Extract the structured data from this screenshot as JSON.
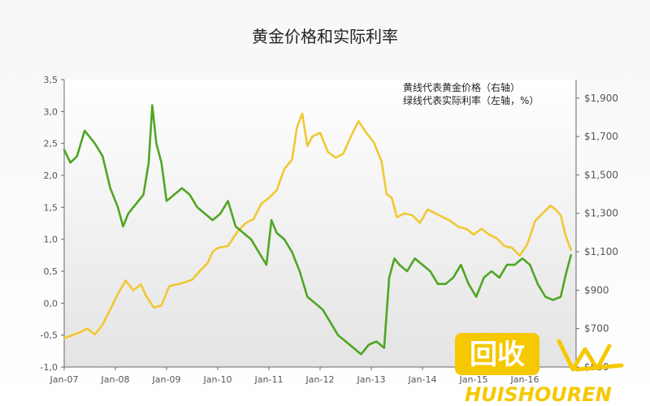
{
  "chart_data": {
    "type": "line",
    "title": "黄金价格和实际利率",
    "legend_lines": [
      "黄线代表黄金价格（右轴）",
      "绿线代表实际利率（左轴，%）"
    ],
    "legend_placement": "top-right",
    "grid": false,
    "x_ticks": [
      "Jan-07",
      "Jan-08",
      "Jan-09",
      "Jan-10",
      "Jan-11",
      "Jan-12",
      "Jan-13",
      "Jan-14",
      "Jan-15",
      "Jan-16"
    ],
    "left_axis": {
      "ylim": [
        -1.0,
        3.5
      ],
      "ticks": [
        "3,5",
        "3,0",
        "2,5",
        "2,0",
        "1,5",
        "1,0",
        "0,5",
        "0,0",
        "-0,5",
        "-1,0"
      ]
    },
    "right_axis": {
      "ylim": [
        500,
        1996.4
      ],
      "ticks": [
        "$1,900",
        "$1,700",
        "$1,500",
        "$1,300",
        "$1,100",
        "$900",
        "$700",
        "$500"
      ]
    },
    "series": [
      {
        "key": "gold",
        "axis": "right",
        "color": "#f0c832",
        "x": [
          2007.0,
          2007.15,
          2007.3,
          2007.45,
          2007.6,
          2007.75,
          2007.9,
          2008.05,
          2008.2,
          2008.35,
          2008.5,
          2008.6,
          2008.75,
          2008.9,
          2009.05,
          2009.2,
          2009.35,
          2009.5,
          2009.65,
          2009.8,
          2009.9,
          2010.0,
          2010.2,
          2010.4,
          2010.55,
          2010.7,
          2010.85,
          2011.0,
          2011.15,
          2011.3,
          2011.45,
          2011.55,
          2011.65,
          2011.75,
          2011.85,
          2012.0,
          2012.15,
          2012.3,
          2012.45,
          2012.6,
          2012.75,
          2012.9,
          2013.05,
          2013.2,
          2013.3,
          2013.4,
          2013.5,
          2013.65,
          2013.8,
          2013.95,
          2014.1,
          2014.25,
          2014.4,
          2014.55,
          2014.7,
          2014.85,
          2015.0,
          2015.15,
          2015.3,
          2015.45,
          2015.6,
          2015.75,
          2015.9,
          2016.05,
          2016.2,
          2016.35,
          2016.5,
          2016.6,
          2016.7,
          2016.8,
          2016.9
        ],
        "y": [
          650,
          665,
          680,
          700,
          670,
          720,
          800,
          880,
          950,
          900,
          930,
          870,
          810,
          820,
          920,
          930,
          940,
          955,
          1000,
          1040,
          1100,
          1120,
          1130,
          1210,
          1250,
          1270,
          1350,
          1380,
          1420,
          1530,
          1580,
          1750,
          1820,
          1650,
          1700,
          1720,
          1620,
          1590,
          1610,
          1700,
          1780,
          1720,
          1670,
          1570,
          1400,
          1380,
          1280,
          1300,
          1290,
          1250,
          1320,
          1300,
          1280,
          1260,
          1230,
          1220,
          1190,
          1220,
          1190,
          1170,
          1130,
          1120,
          1080,
          1140,
          1260,
          1300,
          1340,
          1320,
          1290,
          1180,
          1110
        ]
      },
      {
        "key": "real_rate",
        "axis": "left",
        "color": "#4fa624",
        "x": [
          2007.0,
          2007.12,
          2007.25,
          2007.4,
          2007.5,
          2007.6,
          2007.75,
          2007.9,
          2008.05,
          2008.15,
          2008.25,
          2008.35,
          2008.45,
          2008.55,
          2008.65,
          2008.72,
          2008.8,
          2008.9,
          2009.0,
          2009.15,
          2009.3,
          2009.45,
          2009.6,
          2009.75,
          2009.9,
          2010.05,
          2010.2,
          2010.35,
          2010.5,
          2010.65,
          2010.8,
          2010.95,
          2011.05,
          2011.15,
          2011.3,
          2011.45,
          2011.6,
          2011.75,
          2011.9,
          2012.05,
          2012.2,
          2012.35,
          2012.5,
          2012.65,
          2012.8,
          2012.95,
          2013.1,
          2013.25,
          2013.35,
          2013.45,
          2013.55,
          2013.7,
          2013.85,
          2014.0,
          2014.15,
          2014.3,
          2014.45,
          2014.6,
          2014.75,
          2014.9,
          2015.05,
          2015.2,
          2015.35,
          2015.5,
          2015.65,
          2015.8,
          2015.95,
          2016.1,
          2016.25,
          2016.4,
          2016.55,
          2016.7,
          2016.8,
          2016.9
        ],
        "y": [
          2.4,
          2.2,
          2.3,
          2.7,
          2.6,
          2.5,
          2.3,
          1.8,
          1.5,
          1.2,
          1.4,
          1.5,
          1.6,
          1.7,
          2.2,
          3.1,
          2.5,
          2.2,
          1.6,
          1.7,
          1.8,
          1.7,
          1.5,
          1.4,
          1.3,
          1.4,
          1.6,
          1.2,
          1.1,
          1.0,
          0.8,
          0.6,
          1.3,
          1.1,
          1.0,
          0.8,
          0.5,
          0.1,
          0.0,
          -0.1,
          -0.3,
          -0.5,
          -0.6,
          -0.7,
          -0.8,
          -0.65,
          -0.6,
          -0.7,
          0.4,
          0.7,
          0.6,
          0.5,
          0.7,
          0.6,
          0.5,
          0.3,
          0.3,
          0.4,
          0.6,
          0.3,
          0.1,
          0.4,
          0.5,
          0.4,
          0.6,
          0.6,
          0.7,
          0.6,
          0.3,
          0.1,
          0.05,
          0.1,
          0.45,
          0.75
        ]
      }
    ]
  },
  "watermark": {
    "cn_text": "回收",
    "en_text": "HUISHOUREN",
    "color": "#f5c800"
  }
}
